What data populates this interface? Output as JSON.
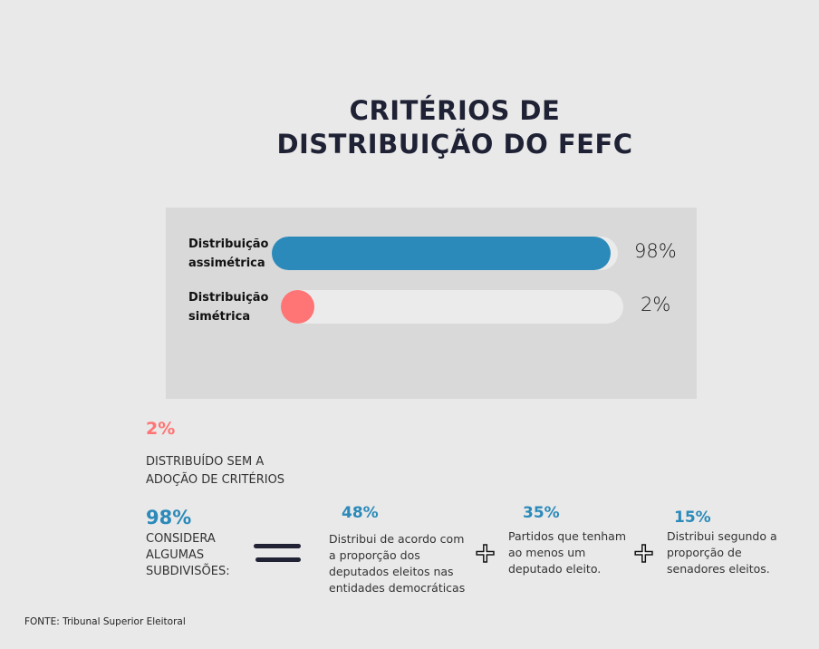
{
  "title_line1": "CRITÉRIOS DE",
  "title_line2": "DISTRIBUIÇÃO DO FEFC",
  "chart_data": {
    "type": "bar",
    "orientation": "horizontal",
    "title": "CRITÉRIOS DE DISTRIBUIÇÃO DO FEFC",
    "categories": [
      [
        "Distribuição",
        "assimétrica"
      ],
      [
        "Distribuição",
        "simétrica"
      ]
    ],
    "values": [
      98,
      2
    ],
    "value_labels": [
      "98%",
      "2%"
    ],
    "colors": [
      "#2b8aba",
      "#ff7474"
    ],
    "xlim": [
      0,
      100
    ]
  },
  "note": {
    "pct": "2%",
    "line1": "DISTRIBUÍDO SEM A",
    "line2": "ADOÇÃO DE CRITÉRIOS"
  },
  "considera": {
    "pct": "98%",
    "lines": [
      "CONSIDERA",
      "ALGUMAS",
      "SUBDIVISÕES:"
    ]
  },
  "parts": [
    {
      "pct": "48%",
      "lines": [
        "Distribui de acordo com",
        "a proporção dos",
        "deputados eleitos nas",
        "entidades democráticas"
      ]
    },
    {
      "pct": "35%",
      "lines": [
        "Partidos que tenham",
        "ao menos um",
        "deputado eleito."
      ]
    },
    {
      "pct": "15%",
      "lines": [
        "Distribui segundo a",
        "proporção de",
        "senadores eleitos."
      ]
    }
  ],
  "plus_symbol": "+",
  "source": "FONTE: Tribunal Superior Eleitoral"
}
